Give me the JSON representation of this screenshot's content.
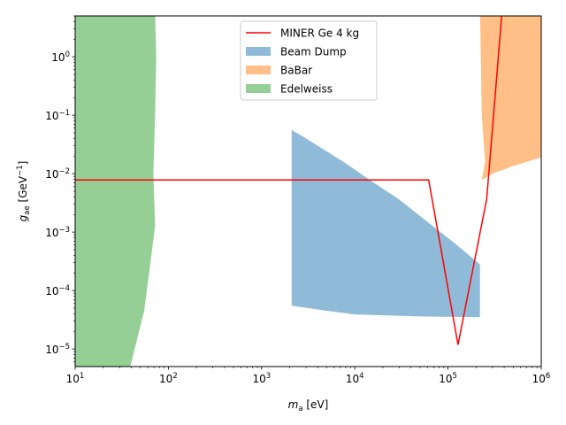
{
  "chart_data": {
    "type": "area",
    "title": "",
    "xlabel": "m_a [eV]",
    "ylabel": "g_ae [GeV^-1]",
    "xscale": "log",
    "yscale": "log",
    "xlim": [
      10,
      1000000
    ],
    "ylim": [
      5e-06,
      5
    ],
    "grid": false,
    "legend_position": "top-center",
    "x_ticks": [
      {
        "value": 10,
        "base": "10",
        "exp": "1"
      },
      {
        "value": 100,
        "base": "10",
        "exp": "2"
      },
      {
        "value": 1000,
        "base": "10",
        "exp": "3"
      },
      {
        "value": 10000,
        "base": "10",
        "exp": "4"
      },
      {
        "value": 100000,
        "base": "10",
        "exp": "5"
      },
      {
        "value": 1000000,
        "base": "10",
        "exp": "6"
      }
    ],
    "y_ticks": [
      {
        "value": 1e-05,
        "base": "10",
        "exp": "−5"
      },
      {
        "value": 0.0001,
        "base": "10",
        "exp": "−4"
      },
      {
        "value": 0.001,
        "base": "10",
        "exp": "−3"
      },
      {
        "value": 0.01,
        "base": "10",
        "exp": "−2"
      },
      {
        "value": 0.1,
        "base": "10",
        "exp": "−1"
      },
      {
        "value": 1,
        "base": "10",
        "exp": "0"
      }
    ],
    "series": [
      {
        "name": "MINER Ge 4 kg",
        "kind": "line",
        "color": "#ff0000",
        "points": [
          [
            10,
            0.0078
          ],
          [
            62000,
            0.0078
          ],
          [
            128000,
            1.18e-05
          ],
          [
            260000,
            0.0037
          ],
          [
            380000,
            6
          ]
        ]
      },
      {
        "name": "Beam Dump",
        "kind": "fill",
        "color": "#1f77b4",
        "opacity": 0.5,
        "polygon": [
          [
            2100,
            0.056
          ],
          [
            3000,
            0.04
          ],
          [
            5000,
            0.024
          ],
          [
            8000,
            0.015
          ],
          [
            15000,
            0.0075
          ],
          [
            30000,
            0.0036
          ],
          [
            60000,
            0.0015
          ],
          [
            120000,
            0.00063
          ],
          [
            220000,
            0.00028
          ],
          [
            220000,
            3.5e-05
          ],
          [
            50000,
            3.6e-05
          ],
          [
            10000,
            3.9e-05
          ],
          [
            5000,
            4.5e-05
          ],
          [
            2100,
            5.5e-05
          ]
        ]
      },
      {
        "name": "BaBar",
        "kind": "fill",
        "color": "#ff7f0e",
        "opacity": 0.5,
        "polygon": [
          [
            220000,
            6
          ],
          [
            1000000,
            6
          ],
          [
            1000000,
            0.019
          ],
          [
            500000,
            0.0135
          ],
          [
            300000,
            0.01
          ],
          [
            230000,
            0.0078
          ],
          [
            250000,
            0.016
          ],
          [
            230000,
            0.1
          ],
          [
            225000,
            1
          ],
          [
            220000,
            6
          ]
        ]
      },
      {
        "name": "Edelweiss",
        "kind": "fill",
        "color": "#2ca02c",
        "opacity": 0.5,
        "polygon": [
          [
            10,
            6
          ],
          [
            72000,
            6
          ],
          [
            72000,
            0
          ],
          [
            10,
            0
          ]
        ],
        "boundary": [
          [
            10,
            6
          ],
          [
            72,
            6
          ],
          [
            74,
            1
          ],
          [
            72,
            0.1
          ],
          [
            69,
            0.01
          ],
          [
            72,
            0.0013
          ],
          [
            65,
            0.00035
          ],
          [
            55,
            4.5e-05
          ],
          [
            39,
            5e-06
          ],
          [
            10,
            5e-06
          ]
        ]
      }
    ]
  }
}
